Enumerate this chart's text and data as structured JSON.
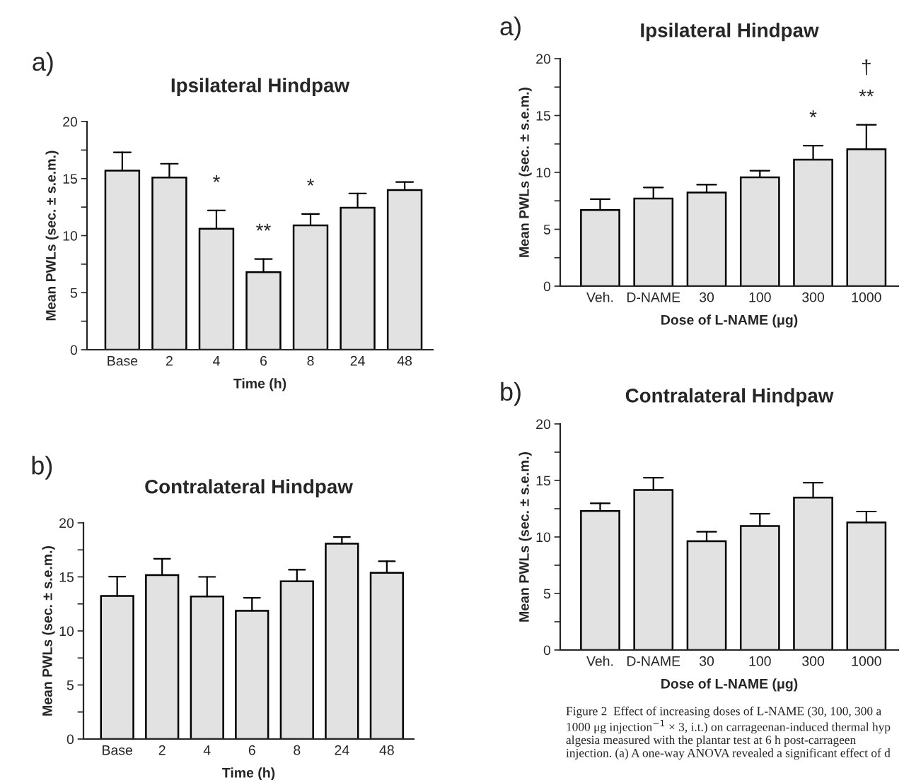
{
  "chart_data": [
    {
      "type": "bar",
      "title": "Ipsilateral Hindpaw",
      "xlabel": "Time (h)",
      "ylabel": "Mean PWLs (sec. ± s.e.m.)",
      "categories": [
        "Base",
        "2",
        "4",
        "6",
        "8",
        "24",
        "48"
      ],
      "values": [
        15.7,
        15.1,
        10.6,
        6.8,
        10.9,
        12.45,
        14.0
      ],
      "errors": [
        [
          15.7,
          17.3
        ],
        [
          15.1,
          16.3
        ],
        [
          10.6,
          12.2
        ],
        [
          6.8,
          7.95
        ],
        [
          10.9,
          11.9
        ],
        [
          12.45,
          13.7
        ],
        [
          14.0,
          14.7
        ]
      ],
      "color": "#e2e2e2",
      "ylim": [
        0,
        20
      ],
      "yticks": [
        0,
        {
          "value": 2.5,
          "label": null
        },
        5,
        {
          "value": 7.5,
          "label": null
        },
        10,
        {
          "value": 12.5,
          "label": null
        },
        15,
        {
          "value": 17.5,
          "label": null
        },
        20
      ],
      "grid": false,
      "annotations": [
        "a)",
        {
          "text": "*",
          "x": "4",
          "y": 12.2
        },
        {
          "text": "**",
          "x": "6",
          "y": 7.95
        },
        {
          "text": "*",
          "x": "8",
          "y": 11.9
        }
      ]
    },
    {
      "type": "bar",
      "title": "Contralateral Hindpaw",
      "xlabel": "Time (h)",
      "ylabel": "Mean PWLs (sec. ± s.e.m.)",
      "categories": [
        "Base",
        "2",
        "4",
        "6",
        "8",
        "24",
        "48"
      ],
      "values": [
        13.23,
        15.16,
        13.18,
        11.87,
        14.59,
        18.07,
        15.37
      ],
      "errors": [
        [
          13.23,
          15.03
        ],
        [
          15.16,
          16.68
        ],
        [
          13.18,
          15.0
        ],
        [
          11.87,
          13.07
        ],
        [
          14.59,
          15.66
        ],
        [
          18.07,
          18.69
        ],
        [
          15.37,
          16.44
        ]
      ],
      "color": "#e2e2e2",
      "ylim": [
        0,
        20
      ],
      "yticks": [
        0,
        {
          "value": 2.5,
          "label": null
        },
        5,
        {
          "value": 7.5,
          "label": null
        },
        10,
        {
          "value": 12.5,
          "label": null
        },
        15,
        {
          "value": 17.5,
          "label": null
        },
        20
      ],
      "grid": false,
      "annotations": [
        "b)"
      ]
    },
    {
      "type": "bar",
      "title": "Ipsilateral Hindpaw",
      "xlabel": "Dose of L-NAME (μg)",
      "ylabel": "Mean PWLs (sec. ± s.e.m.)",
      "categories": [
        "Veh.",
        "D-NAME",
        "30",
        "100",
        "300",
        "1000"
      ],
      "values": [
        6.7,
        7.7,
        8.23,
        9.57,
        11.12,
        12.03
      ],
      "errors": [
        [
          6.7,
          7.65
        ],
        [
          7.7,
          8.67
        ],
        [
          8.23,
          8.92
        ],
        [
          9.57,
          10.15
        ],
        [
          11.12,
          12.35
        ],
        [
          12.03,
          14.18
        ]
      ],
      "color": "#e2e2e2",
      "ylim": [
        0,
        20
      ],
      "yticks": [
        0,
        {
          "value": 2.5,
          "label": null
        },
        5,
        {
          "value": 7.5,
          "label": null
        },
        10,
        {
          "value": 12.5,
          "label": null
        },
        15,
        {
          "value": 17.5,
          "label": null
        },
        20
      ],
      "grid": false,
      "annotations": [
        "a)",
        {
          "text": "*",
          "x": "300",
          "y": 12.35
        },
        {
          "text": "**",
          "x": "1000",
          "y": 14.18
        },
        {
          "text": "†",
          "x": "1000",
          "y": 14.18
        }
      ]
    },
    {
      "type": "bar",
      "title": "Contralateral Hindpaw",
      "xlabel": "Dose of L-NAME (μg)",
      "ylabel": "Mean PWLs (sec. ± s.e.m.)",
      "categories": [
        "Veh.",
        "D-NAME",
        "30",
        "100",
        "300",
        "1000"
      ],
      "values": [
        12.3,
        14.15,
        9.63,
        10.97,
        13.48,
        11.28
      ],
      "errors": [
        [
          12.3,
          12.97
        ],
        [
          14.15,
          15.24
        ],
        [
          9.63,
          10.46
        ],
        [
          10.97,
          12.06
        ],
        [
          13.48,
          14.8
        ],
        [
          11.28,
          12.25
        ]
      ],
      "color": "#e2e2e2",
      "ylim": [
        0,
        20
      ],
      "yticks": [
        0,
        {
          "value": 2.5,
          "label": null
        },
        5,
        {
          "value": 7.5,
          "label": null
        },
        10,
        {
          "value": 12.5,
          "label": null
        },
        15,
        {
          "value": 17.5,
          "label": null
        },
        20
      ],
      "grid": false,
      "annotations": [
        "b)",
        "Figure 2  Effect of increasing doses of L-NAME (30, 100, 300 a 1000 μg injection$^{−1}$ × 3, i.t.) on carrageenan-induced thermal hyp algesia measured with the plantar test at 6 h post-carrageen injection. (a) A one-way ANOVA revealed a significant effect of d"
      ]
    }
  ]
}
